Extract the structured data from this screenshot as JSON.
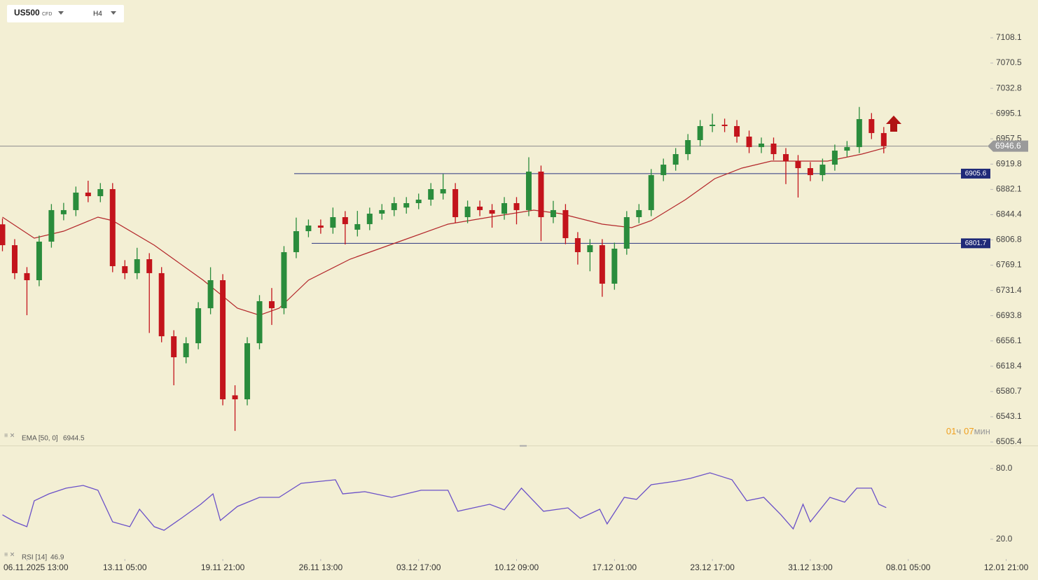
{
  "chart_data": [
    {
      "type": "candlestick",
      "symbol": "US500",
      "tag": "CFD",
      "timeframe": "H4",
      "up_color": "#2a8c3c",
      "down_color": "#c3141c",
      "xlim": [
        0,
        424
      ],
      "ylim": [
        6500.2,
        7164.5
      ],
      "yticks": [
        7108.1,
        7070.5,
        7032.8,
        6995.1,
        6957.5,
        6919.8,
        6882.1,
        6844.4,
        6806.8,
        6769.1,
        6731.4,
        6693.8,
        6656.1,
        6618.4,
        6580.7,
        6543.1,
        6505.4
      ],
      "x": [
        1,
        6,
        11,
        16,
        21,
        26,
        31,
        36,
        41,
        46,
        51,
        56,
        61,
        66,
        71,
        76,
        81,
        86,
        91,
        96,
        101,
        106,
        111,
        116,
        121,
        126,
        131,
        136,
        141,
        146,
        151,
        156,
        161,
        166,
        171,
        176,
        181,
        186,
        191,
        196,
        201,
        206,
        211,
        216,
        221,
        226,
        231,
        236,
        241,
        246,
        251,
        256,
        261,
        266,
        271,
        276,
        281,
        286,
        291,
        296,
        301,
        306,
        311,
        316,
        321,
        326,
        331,
        336,
        341,
        346,
        351,
        356,
        361
      ],
      "open": [
        6830.0,
        6798.9,
        6757.2,
        6746.7,
        6804.2,
        6845.0,
        6851.2,
        6877.3,
        6872.0,
        6882.5,
        6767.6,
        6757.2,
        6778.0,
        6757.2,
        6663.1,
        6631.8,
        6652.7,
        6704.9,
        6746.7,
        6575.0,
        6569.1,
        6652.7,
        6715.4,
        6704.9,
        6788.5,
        6819.8,
        6828.2,
        6825.0,
        6840.7,
        6822.0,
        6830.3,
        6845.9,
        6851.2,
        6855.0,
        6861.6,
        6866.8,
        6876.0,
        6882.5,
        6840.7,
        6856.4,
        6851.2,
        6845.9,
        6861.6,
        6851.2,
        6908.6,
        6840.7,
        6851.2,
        6809.4,
        6788.5,
        6798.9,
        6741.5,
        6793.7,
        6840.7,
        6851.2,
        6903.4,
        6919.0,
        6934.7,
        6955.6,
        6976.5,
        6978.6,
        6976.5,
        6960.8,
        6945.2,
        6950.4,
        6934.7,
        6924.3,
        6913.8,
        6903.4,
        6919.0,
        6939.9,
        6945.2,
        6986.9,
        6966.1
      ],
      "high": [
        6839.0,
        6807.9,
        6766.2,
        6813.2,
        6860.2,
        6862.0,
        6886.3,
        6895.0,
        6891.5,
        6891.5,
        6776.6,
        6795.0,
        6787.0,
        6766.2,
        6672.1,
        6661.7,
        6713.9,
        6766.0,
        6755.7,
        6590.0,
        6661.7,
        6724.4,
        6735.0,
        6797.5,
        6840.0,
        6837.2,
        6837.2,
        6855.0,
        6849.7,
        6850.0,
        6854.9,
        6860.2,
        6870.6,
        6870.6,
        6875.8,
        6891.5,
        6905.0,
        6891.5,
        6865.4,
        6865.4,
        6860.2,
        6870.6,
        6870.6,
        6930.0,
        6917.6,
        6865.0,
        6860.2,
        6818.4,
        6807.9,
        6807.9,
        6802.7,
        6849.7,
        6860.2,
        6912.4,
        6928.0,
        6943.7,
        6964.6,
        6985.5,
        6995.0,
        6987.6,
        6985.5,
        6969.8,
        6959.4,
        6959.4,
        6943.7,
        6933.3,
        6922.8,
        6928.0,
        6948.9,
        6954.2,
        7005.0,
        6995.9,
        6975.1
      ],
      "low": [
        6789.9,
        6748.2,
        6694.5,
        6737.7,
        6795.2,
        6836.0,
        6842.2,
        6863.0,
        6863.0,
        6758.6,
        6748.2,
        6748.2,
        6668.0,
        6654.1,
        6590.0,
        6622.8,
        6643.7,
        6695.9,
        6560.1,
        6522.0,
        6560.1,
        6643.7,
        6680.0,
        6695.9,
        6779.5,
        6810.8,
        6816.0,
        6816.0,
        6800.0,
        6812.0,
        6821.3,
        6836.9,
        6842.2,
        6846.0,
        6852.6,
        6857.8,
        6867.0,
        6831.7,
        6831.7,
        6842.2,
        6825.0,
        6836.9,
        6830.0,
        6842.2,
        6805.0,
        6831.7,
        6800.4,
        6770.0,
        6760.0,
        6722.0,
        6732.5,
        6784.7,
        6831.7,
        6842.2,
        6894.4,
        6910.0,
        6925.7,
        6946.6,
        6967.5,
        6967.5,
        6951.8,
        6936.2,
        6936.2,
        6925.7,
        6890.0,
        6870.0,
        6894.4,
        6894.4,
        6910.0,
        6930.9,
        6936.2,
        6957.1,
        6936.0
      ],
      "close": [
        6798.9,
        6757.2,
        6746.7,
        6804.2,
        6851.2,
        6851.2,
        6877.3,
        6872.0,
        6882.5,
        6767.6,
        6757.2,
        6778.0,
        6757.2,
        6663.1,
        6631.8,
        6652.7,
        6704.9,
        6746.7,
        6569.1,
        6569.1,
        6652.7,
        6715.4,
        6704.9,
        6788.5,
        6819.8,
        6828.2,
        6825.0,
        6840.7,
        6830.3,
        6830.3,
        6845.9,
        6851.2,
        6861.6,
        6861.6,
        6866.8,
        6882.5,
        6882.5,
        6840.7,
        6856.4,
        6851.2,
        6845.9,
        6861.6,
        6851.2,
        6908.6,
        6840.7,
        6851.2,
        6809.4,
        6788.5,
        6798.9,
        6741.5,
        6793.7,
        6840.7,
        6851.2,
        6903.4,
        6919.0,
        6934.7,
        6955.6,
        6976.5,
        6978.6,
        6976.5,
        6960.8,
        6945.2,
        6950.4,
        6934.7,
        6924.3,
        6913.8,
        6903.4,
        6919.0,
        6939.9,
        6945.2,
        6986.9,
        6966.1,
        6946.6
      ],
      "ema": {
        "name": "EMA [50, 0]",
        "value": 6944.5,
        "color": "#b3262a",
        "x": [
          1,
          14,
          26,
          40,
          46,
          63,
          83,
          97,
          106,
          114,
          126,
          143,
          163,
          183,
          200,
          218,
          229,
          246,
          258,
          266,
          280,
          292,
          303,
          315,
          329,
          338,
          352,
          362
        ],
        "values": [
          6840.7,
          6809.4,
          6819.8,
          6840.7,
          6835.5,
          6798.9,
          6746.7,
          6704.9,
          6694.5,
          6704.9,
          6746.7,
          6778.0,
          6804.2,
          6830.3,
          6840.7,
          6851.2,
          6845.9,
          6830.3,
          6825.0,
          6835.5,
          6866.8,
          6898.2,
          6913.8,
          6924.3,
          6924.3,
          6924.3,
          6934.7,
          6944.5
        ]
      },
      "levels": [
        6905.6,
        6801.7
      ],
      "last": 6946.6,
      "countdown": {
        "hours": "01",
        "hours_unit": "ч",
        "minutes": "07",
        "minutes_unit": "мин"
      }
    },
    {
      "type": "line",
      "name": "RSI [14]",
      "value": 46.9,
      "color": "#6a50c8",
      "xlim": [
        0,
        424
      ],
      "ylim": [
        5.1,
        98.4
      ],
      "yticks": [
        {
          "value": 80,
          "label": "80.0"
        },
        {
          "value": 20,
          "label": "20.0"
        }
      ],
      "xticks": [
        {
          "value": 11,
          "label": "06.11.2025 13:00"
        },
        {
          "value": 51,
          "label": "13.11 05:00"
        },
        {
          "value": 91,
          "label": "19.11 21:00"
        },
        {
          "value": 131,
          "label": "26.11 13:00"
        },
        {
          "value": 171,
          "label": "03.12 17:00"
        },
        {
          "value": 211,
          "label": "10.12 09:00"
        },
        {
          "value": 251,
          "label": "17.12 01:00"
        },
        {
          "value": 291,
          "label": "23.12 17:00"
        },
        {
          "value": 331,
          "label": "31.12 13:00"
        },
        {
          "value": 371,
          "label": "08.01 05:00"
        },
        {
          "value": 411,
          "label": "12.01 21:00"
        }
      ],
      "x": [
        1,
        6,
        11,
        14,
        20,
        27,
        34,
        40,
        46,
        53,
        57,
        63,
        67,
        74,
        82,
        87,
        90,
        97,
        106,
        114,
        123,
        137,
        140,
        149,
        160,
        172,
        183,
        187,
        200,
        206,
        213,
        222,
        232,
        237,
        245,
        248,
        255,
        260,
        266,
        276,
        282,
        290,
        299,
        305,
        312,
        319,
        324,
        328,
        331,
        339,
        345,
        350,
        356,
        359,
        362
      ],
      "values": [
        40.8,
        34.8,
        30.7,
        52.7,
        58.6,
        63.4,
        65.7,
        61.6,
        34.8,
        30.7,
        45.5,
        30.7,
        27.7,
        37.8,
        49.7,
        58.6,
        36.0,
        47.9,
        55.6,
        55.6,
        67.5,
        70.5,
        58.6,
        60.4,
        55.6,
        61.6,
        61.6,
        43.8,
        49.7,
        45.0,
        63.4,
        43.8,
        46.7,
        37.8,
        45.5,
        33.1,
        55.6,
        53.9,
        66.3,
        69.3,
        71.7,
        76.4,
        70.5,
        52.7,
        55.6,
        40.8,
        28.9,
        49.7,
        34.8,
        55.6,
        51.5,
        63.4,
        63.4,
        49.7,
        46.9
      ]
    }
  ]
}
